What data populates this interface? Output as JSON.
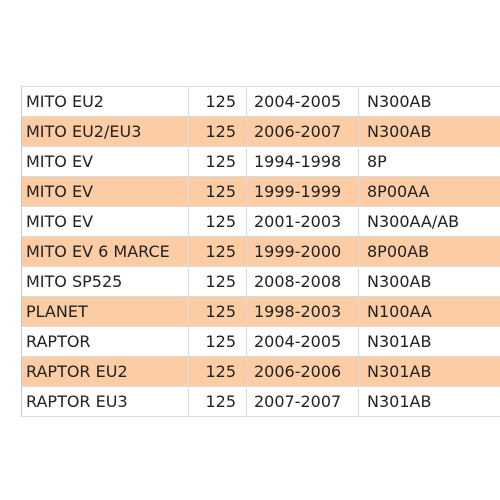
{
  "table": {
    "rows": [
      {
        "model": "MITO EU2",
        "cc": "125",
        "years": "2004-2005",
        "code": "N300AB"
      },
      {
        "model": "MITO EU2/EU3",
        "cc": "125",
        "years": "2006-2007",
        "code": "N300AB"
      },
      {
        "model": "MITO EV",
        "cc": "125",
        "years": "1994-1998",
        "code": "8P"
      },
      {
        "model": "MITO EV",
        "cc": "125",
        "years": "1999-1999",
        "code": "8P00AA"
      },
      {
        "model": "MITO EV",
        "cc": "125",
        "years": "2001-2003",
        "code": "N300AA/AB"
      },
      {
        "model": "MITO EV 6 MARCE",
        "cc": "125",
        "years": "1999-2000",
        "code": "8P00AB"
      },
      {
        "model": "MITO SP525",
        "cc": "125",
        "years": "2008-2008",
        "code": "N300AB"
      },
      {
        "model": "PLANET",
        "cc": "125",
        "years": "1998-2003",
        "code": "N100AA"
      },
      {
        "model": "RAPTOR",
        "cc": "125",
        "years": "2004-2005",
        "code": "N301AB"
      },
      {
        "model": "RAPTOR EU2",
        "cc": "125",
        "years": "2006-2006",
        "code": "N301AB"
      },
      {
        "model": "RAPTOR EU3",
        "cc": "125",
        "years": "2007-2007",
        "code": "N301AB"
      }
    ],
    "colors": {
      "alt_row": "#fccda4",
      "normal_row": "#ffffff",
      "grid_line": "#dcdcdc"
    }
  }
}
